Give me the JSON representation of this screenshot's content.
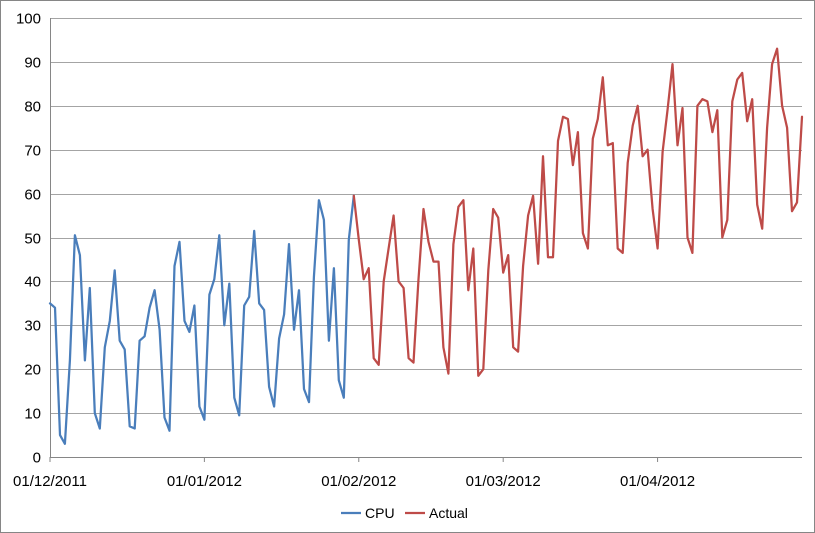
{
  "chart_data": {
    "type": "line",
    "y_ticks": [
      0,
      10,
      20,
      30,
      40,
      50,
      60,
      70,
      80,
      90,
      100
    ],
    "ylim": [
      0,
      100
    ],
    "x_ticks": [
      "01/12/2011",
      "01/01/2012",
      "01/02/2012",
      "01/03/2012",
      "01/04/2012"
    ],
    "xlim": [
      "2011-12-01",
      "2012-04-30"
    ],
    "grid": {
      "horizontal": true,
      "vertical": false
    },
    "legend_position": "bottom",
    "series": [
      {
        "name": "CPU",
        "color": "#4a7ebb",
        "points": [
          [
            "2011-12-01",
            35
          ],
          [
            "2011-12-02",
            34
          ],
          [
            "2011-12-03",
            5
          ],
          [
            "2011-12-04",
            3
          ],
          [
            "2011-12-05",
            22
          ],
          [
            "2011-12-06",
            50.5
          ],
          [
            "2011-12-07",
            46
          ],
          [
            "2011-12-08",
            22
          ],
          [
            "2011-12-09",
            38.5
          ],
          [
            "2011-12-10",
            10
          ],
          [
            "2011-12-11",
            6.5
          ],
          [
            "2011-12-12",
            25
          ],
          [
            "2011-12-13",
            31
          ],
          [
            "2011-12-14",
            42.5
          ],
          [
            "2011-12-15",
            26.5
          ],
          [
            "2011-12-16",
            24.5
          ],
          [
            "2011-12-17",
            7
          ],
          [
            "2011-12-18",
            6.5
          ],
          [
            "2011-12-19",
            26.5
          ],
          [
            "2011-12-20",
            27.5
          ],
          [
            "2011-12-21",
            34
          ],
          [
            "2011-12-22",
            38
          ],
          [
            "2011-12-23",
            29
          ],
          [
            "2011-12-24",
            9
          ],
          [
            "2011-12-25",
            6
          ],
          [
            "2011-12-26",
            43.5
          ],
          [
            "2011-12-27",
            49
          ],
          [
            "2011-12-28",
            31
          ],
          [
            "2011-12-29",
            28.5
          ],
          [
            "2011-12-30",
            34.5
          ],
          [
            "2011-12-31",
            11.5
          ],
          [
            "2012-01-01",
            8.5
          ],
          [
            "2012-01-02",
            37
          ],
          [
            "2012-01-03",
            40.5
          ],
          [
            "2012-01-04",
            50.5
          ],
          [
            "2012-01-05",
            30
          ],
          [
            "2012-01-06",
            39.5
          ],
          [
            "2012-01-07",
            13.5
          ],
          [
            "2012-01-08",
            9.5
          ],
          [
            "2012-01-09",
            34.5
          ],
          [
            "2012-01-10",
            36.5
          ],
          [
            "2012-01-11",
            51.5
          ],
          [
            "2012-01-12",
            35
          ],
          [
            "2012-01-13",
            33.5
          ],
          [
            "2012-01-14",
            16
          ],
          [
            "2012-01-15",
            11.5
          ],
          [
            "2012-01-16",
            27
          ],
          [
            "2012-01-17",
            32.5
          ],
          [
            "2012-01-18",
            48.5
          ],
          [
            "2012-01-19",
            29
          ],
          [
            "2012-01-20",
            38
          ],
          [
            "2012-01-21",
            15.5
          ],
          [
            "2012-01-22",
            12.5
          ],
          [
            "2012-01-23",
            41
          ],
          [
            "2012-01-24",
            58.5
          ],
          [
            "2012-01-25",
            54
          ],
          [
            "2012-01-26",
            26.5
          ],
          [
            "2012-01-27",
            43
          ],
          [
            "2012-01-28",
            17.5
          ],
          [
            "2012-01-29",
            13.5
          ],
          [
            "2012-01-30",
            49.5
          ],
          [
            "2012-01-31",
            59.5
          ]
        ]
      },
      {
        "name": "Actual",
        "color": "#be4b48",
        "points": [
          [
            "2012-01-31",
            59.5
          ],
          [
            "2012-02-01",
            49.5
          ],
          [
            "2012-02-02",
            40.5
          ],
          [
            "2012-02-03",
            43
          ],
          [
            "2012-02-04",
            22.5
          ],
          [
            "2012-02-05",
            21
          ],
          [
            "2012-02-06",
            40
          ],
          [
            "2012-02-07",
            47.5
          ],
          [
            "2012-02-08",
            55
          ],
          [
            "2012-02-09",
            40
          ],
          [
            "2012-02-10",
            38.5
          ],
          [
            "2012-02-11",
            22.5
          ],
          [
            "2012-02-12",
            21.5
          ],
          [
            "2012-02-13",
            40.5
          ],
          [
            "2012-02-14",
            56.5
          ],
          [
            "2012-02-15",
            49
          ],
          [
            "2012-02-16",
            44.5
          ],
          [
            "2012-02-17",
            44.5
          ],
          [
            "2012-02-18",
            25
          ],
          [
            "2012-02-19",
            19
          ],
          [
            "2012-02-20",
            48.5
          ],
          [
            "2012-02-21",
            57
          ],
          [
            "2012-02-22",
            58.5
          ],
          [
            "2012-02-23",
            38
          ],
          [
            "2012-02-24",
            47.5
          ],
          [
            "2012-02-25",
            18.5
          ],
          [
            "2012-02-26",
            20
          ],
          [
            "2012-02-27",
            42.5
          ],
          [
            "2012-02-28",
            56.5
          ],
          [
            "2012-02-29",
            54.5
          ],
          [
            "2012-03-01",
            42
          ],
          [
            "2012-03-02",
            46
          ],
          [
            "2012-03-03",
            25
          ],
          [
            "2012-03-04",
            24
          ],
          [
            "2012-03-05",
            43.5
          ],
          [
            "2012-03-06",
            55
          ],
          [
            "2012-03-07",
            59.5
          ],
          [
            "2012-03-08",
            44
          ],
          [
            "2012-03-09",
            68.5
          ],
          [
            "2012-03-10",
            45.5
          ],
          [
            "2012-03-11",
            45.5
          ],
          [
            "2012-03-12",
            72
          ],
          [
            "2012-03-13",
            77.5
          ],
          [
            "2012-03-14",
            77
          ],
          [
            "2012-03-15",
            66.5
          ],
          [
            "2012-03-16",
            74
          ],
          [
            "2012-03-17",
            51
          ],
          [
            "2012-03-18",
            47.5
          ],
          [
            "2012-03-19",
            72.5
          ],
          [
            "2012-03-20",
            77
          ],
          [
            "2012-03-21",
            86.5
          ],
          [
            "2012-03-22",
            71
          ],
          [
            "2012-03-23",
            71.5
          ],
          [
            "2012-03-24",
            47.5
          ],
          [
            "2012-03-25",
            46.5
          ],
          [
            "2012-03-26",
            67
          ],
          [
            "2012-03-27",
            75.5
          ],
          [
            "2012-03-28",
            80
          ],
          [
            "2012-03-29",
            68.5
          ],
          [
            "2012-03-30",
            70
          ],
          [
            "2012-03-31",
            56.5
          ],
          [
            "2012-04-01",
            47.5
          ],
          [
            "2012-04-02",
            69.5
          ],
          [
            "2012-04-03",
            79
          ],
          [
            "2012-04-04",
            89.5
          ],
          [
            "2012-04-05",
            71
          ],
          [
            "2012-04-06",
            79.5
          ],
          [
            "2012-04-07",
            50
          ],
          [
            "2012-04-08",
            46.5
          ],
          [
            "2012-04-09",
            80
          ],
          [
            "2012-04-10",
            81.5
          ],
          [
            "2012-04-11",
            81
          ],
          [
            "2012-04-12",
            74
          ],
          [
            "2012-04-13",
            79
          ],
          [
            "2012-04-14",
            50
          ],
          [
            "2012-04-15",
            54
          ],
          [
            "2012-04-16",
            81
          ],
          [
            "2012-04-17",
            86
          ],
          [
            "2012-04-18",
            87.5
          ],
          [
            "2012-04-19",
            76.5
          ],
          [
            "2012-04-20",
            81.5
          ],
          [
            "2012-04-21",
            57.5
          ],
          [
            "2012-04-22",
            52
          ],
          [
            "2012-04-23",
            75
          ],
          [
            "2012-04-24",
            89.5
          ],
          [
            "2012-04-25",
            93
          ],
          [
            "2012-04-26",
            80
          ],
          [
            "2012-04-27",
            75
          ],
          [
            "2012-04-28",
            56
          ],
          [
            "2012-04-29",
            58
          ],
          [
            "2012-04-30",
            77.5
          ]
        ]
      }
    ]
  }
}
